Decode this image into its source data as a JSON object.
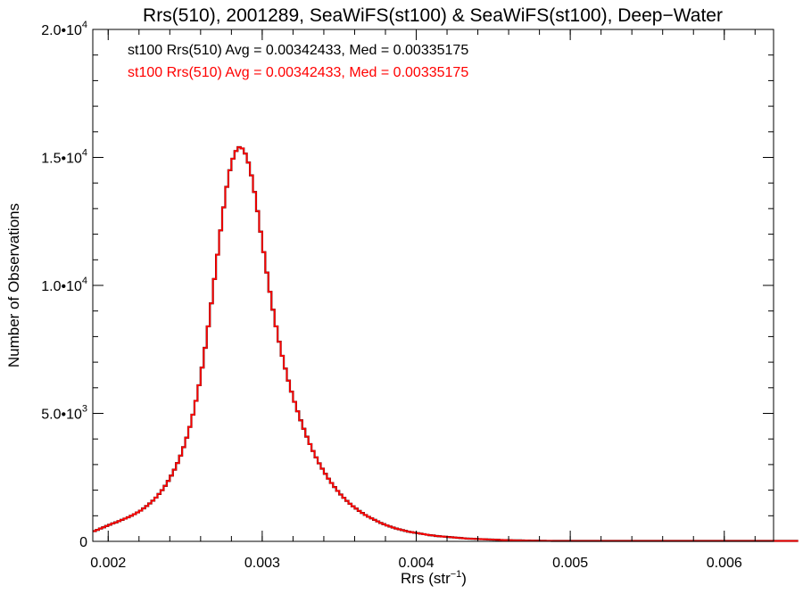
{
  "chart_data": {
    "type": "histogram",
    "title": "Rrs(510), 2001289, SeaWiFS(st100) & SeaWiFS(st100), Deep−Water",
    "xlabel": {
      "base": "Rrs (str",
      "sup": "−1",
      "close": ")"
    },
    "ylabel": "Number of Observations",
    "xlim": [
      0.0019,
      0.00632
    ],
    "ylim": [
      0,
      20000
    ],
    "x_ticks": [
      {
        "value": 0.002,
        "label": "0.002"
      },
      {
        "value": 0.003,
        "label": "0.003"
      },
      {
        "value": 0.004,
        "label": "0.004"
      },
      {
        "value": 0.005,
        "label": "0.005"
      },
      {
        "value": 0.006,
        "label": "0.006"
      }
    ],
    "y_ticks": [
      {
        "value": 0,
        "mantissa": "0",
        "exp": ""
      },
      {
        "value": 5000,
        "mantissa": "5.0•10",
        "exp": "3"
      },
      {
        "value": 10000,
        "mantissa": "1.0•10",
        "exp": "4"
      },
      {
        "value": 15000,
        "mantissa": "1.5•10",
        "exp": "4"
      },
      {
        "value": 20000,
        "mantissa": "2.0•10",
        "exp": "4"
      }
    ],
    "grid": false,
    "legend": [
      {
        "text": "st100 Rrs(510) Avg = 0.00342433, Med = 0.00335175",
        "color": "#000000"
      },
      {
        "text": "st100 Rrs(510) Avg = 0.00342433, Med = 0.00335175",
        "color": "#ff0000"
      }
    ],
    "series": [
      {
        "color": "#000000",
        "bin_width": 2e-05,
        "x_start": 0.0019,
        "values": [
          400,
          450,
          500,
          550,
          600,
          650,
          700,
          740,
          790,
          840,
          890,
          940,
          1000,
          1060,
          1130,
          1200,
          1290,
          1380,
          1480,
          1590,
          1710,
          1850,
          2000,
          2170,
          2360,
          2570,
          2800,
          3060,
          3350,
          3680,
          4050,
          4470,
          4950,
          5490,
          6100,
          6790,
          7560,
          8400,
          9300,
          10250,
          11200,
          12150,
          13050,
          13850,
          14500,
          14950,
          15250,
          15400,
          15350,
          15150,
          14800,
          14300,
          13650,
          12900,
          12100,
          11300,
          10500,
          9750,
          9050,
          8400,
          7800,
          7250,
          6750,
          6280,
          5850,
          5450,
          5080,
          4730,
          4400,
          4090,
          3800,
          3530,
          3280,
          3050,
          2840,
          2640,
          2450,
          2280,
          2120,
          1970,
          1830,
          1700,
          1580,
          1470,
          1370,
          1280,
          1190,
          1110,
          1030,
          960,
          900,
          840,
          780,
          720,
          670,
          620,
          580,
          540,
          500,
          470,
          440,
          410,
          380,
          360,
          340,
          320,
          300,
          280,
          260,
          240,
          230,
          210,
          200,
          190,
          180,
          170,
          160,
          150,
          140,
          130,
          120,
          110,
          105,
          100,
          95,
          90,
          85,
          80,
          75,
          70,
          65,
          60,
          55,
          50,
          48,
          45,
          42,
          40,
          38,
          35,
          32,
          30,
          28,
          26,
          25,
          23,
          22,
          20,
          19,
          18,
          17,
          16,
          15,
          14,
          13,
          12,
          11,
          10,
          10,
          9,
          9,
          8,
          8,
          7,
          7,
          6,
          6,
          5,
          5,
          5,
          4,
          4,
          4,
          3,
          3,
          3,
          3,
          2,
          2,
          2,
          2,
          2,
          1,
          1,
          1,
          1,
          1,
          1,
          1,
          1,
          1,
          1,
          1,
          1,
          1,
          1,
          1,
          1,
          1,
          1,
          1,
          1,
          1,
          1,
          1,
          1,
          1,
          1,
          1,
          1,
          1,
          1,
          1,
          1,
          1,
          1,
          1,
          1,
          1,
          1,
          1,
          1,
          1,
          1,
          1,
          1,
          1,
          1,
          1
        ]
      },
      {
        "color": "#ff0000",
        "bin_width": 2e-05,
        "x_start": 0.0019,
        "values": [
          400,
          450,
          500,
          550,
          600,
          650,
          700,
          740,
          790,
          840,
          890,
          940,
          1000,
          1060,
          1130,
          1200,
          1290,
          1380,
          1480,
          1590,
          1710,
          1850,
          2000,
          2170,
          2360,
          2570,
          2800,
          3060,
          3350,
          3680,
          4050,
          4470,
          4950,
          5490,
          6100,
          6790,
          7560,
          8400,
          9300,
          10250,
          11200,
          12150,
          13050,
          13850,
          14500,
          14950,
          15250,
          15400,
          15350,
          15150,
          14800,
          14300,
          13650,
          12900,
          12100,
          11300,
          10500,
          9750,
          9050,
          8400,
          7800,
          7250,
          6750,
          6280,
          5850,
          5450,
          5080,
          4730,
          4400,
          4090,
          3800,
          3530,
          3280,
          3050,
          2840,
          2640,
          2450,
          2280,
          2120,
          1970,
          1830,
          1700,
          1580,
          1470,
          1370,
          1280,
          1190,
          1110,
          1030,
          960,
          900,
          840,
          780,
          720,
          670,
          620,
          580,
          540,
          500,
          470,
          440,
          410,
          380,
          360,
          340,
          320,
          300,
          280,
          260,
          240,
          230,
          210,
          200,
          190,
          180,
          170,
          160,
          150,
          140,
          130,
          120,
          110,
          105,
          100,
          95,
          90,
          85,
          80,
          75,
          70,
          65,
          60,
          55,
          50,
          48,
          45,
          42,
          40,
          38,
          35,
          32,
          30,
          28,
          26,
          25,
          23,
          22,
          20,
          19,
          18,
          17,
          16,
          15,
          14,
          13,
          12,
          11,
          10,
          10,
          9,
          9,
          8,
          8,
          7,
          7,
          6,
          6,
          5,
          5,
          5,
          4,
          4,
          4,
          3,
          3,
          3,
          3,
          2,
          2,
          2,
          2,
          2,
          1,
          1,
          1,
          1,
          1,
          1,
          1,
          1,
          1,
          1,
          1,
          1,
          1,
          1,
          1,
          1,
          1,
          1,
          1,
          1,
          1,
          1,
          1,
          1,
          1,
          1,
          1,
          1,
          1,
          1,
          1,
          1,
          1,
          1,
          1,
          1,
          1,
          1,
          1,
          1,
          1,
          1,
          1,
          1,
          1,
          1,
          1
        ]
      }
    ]
  }
}
